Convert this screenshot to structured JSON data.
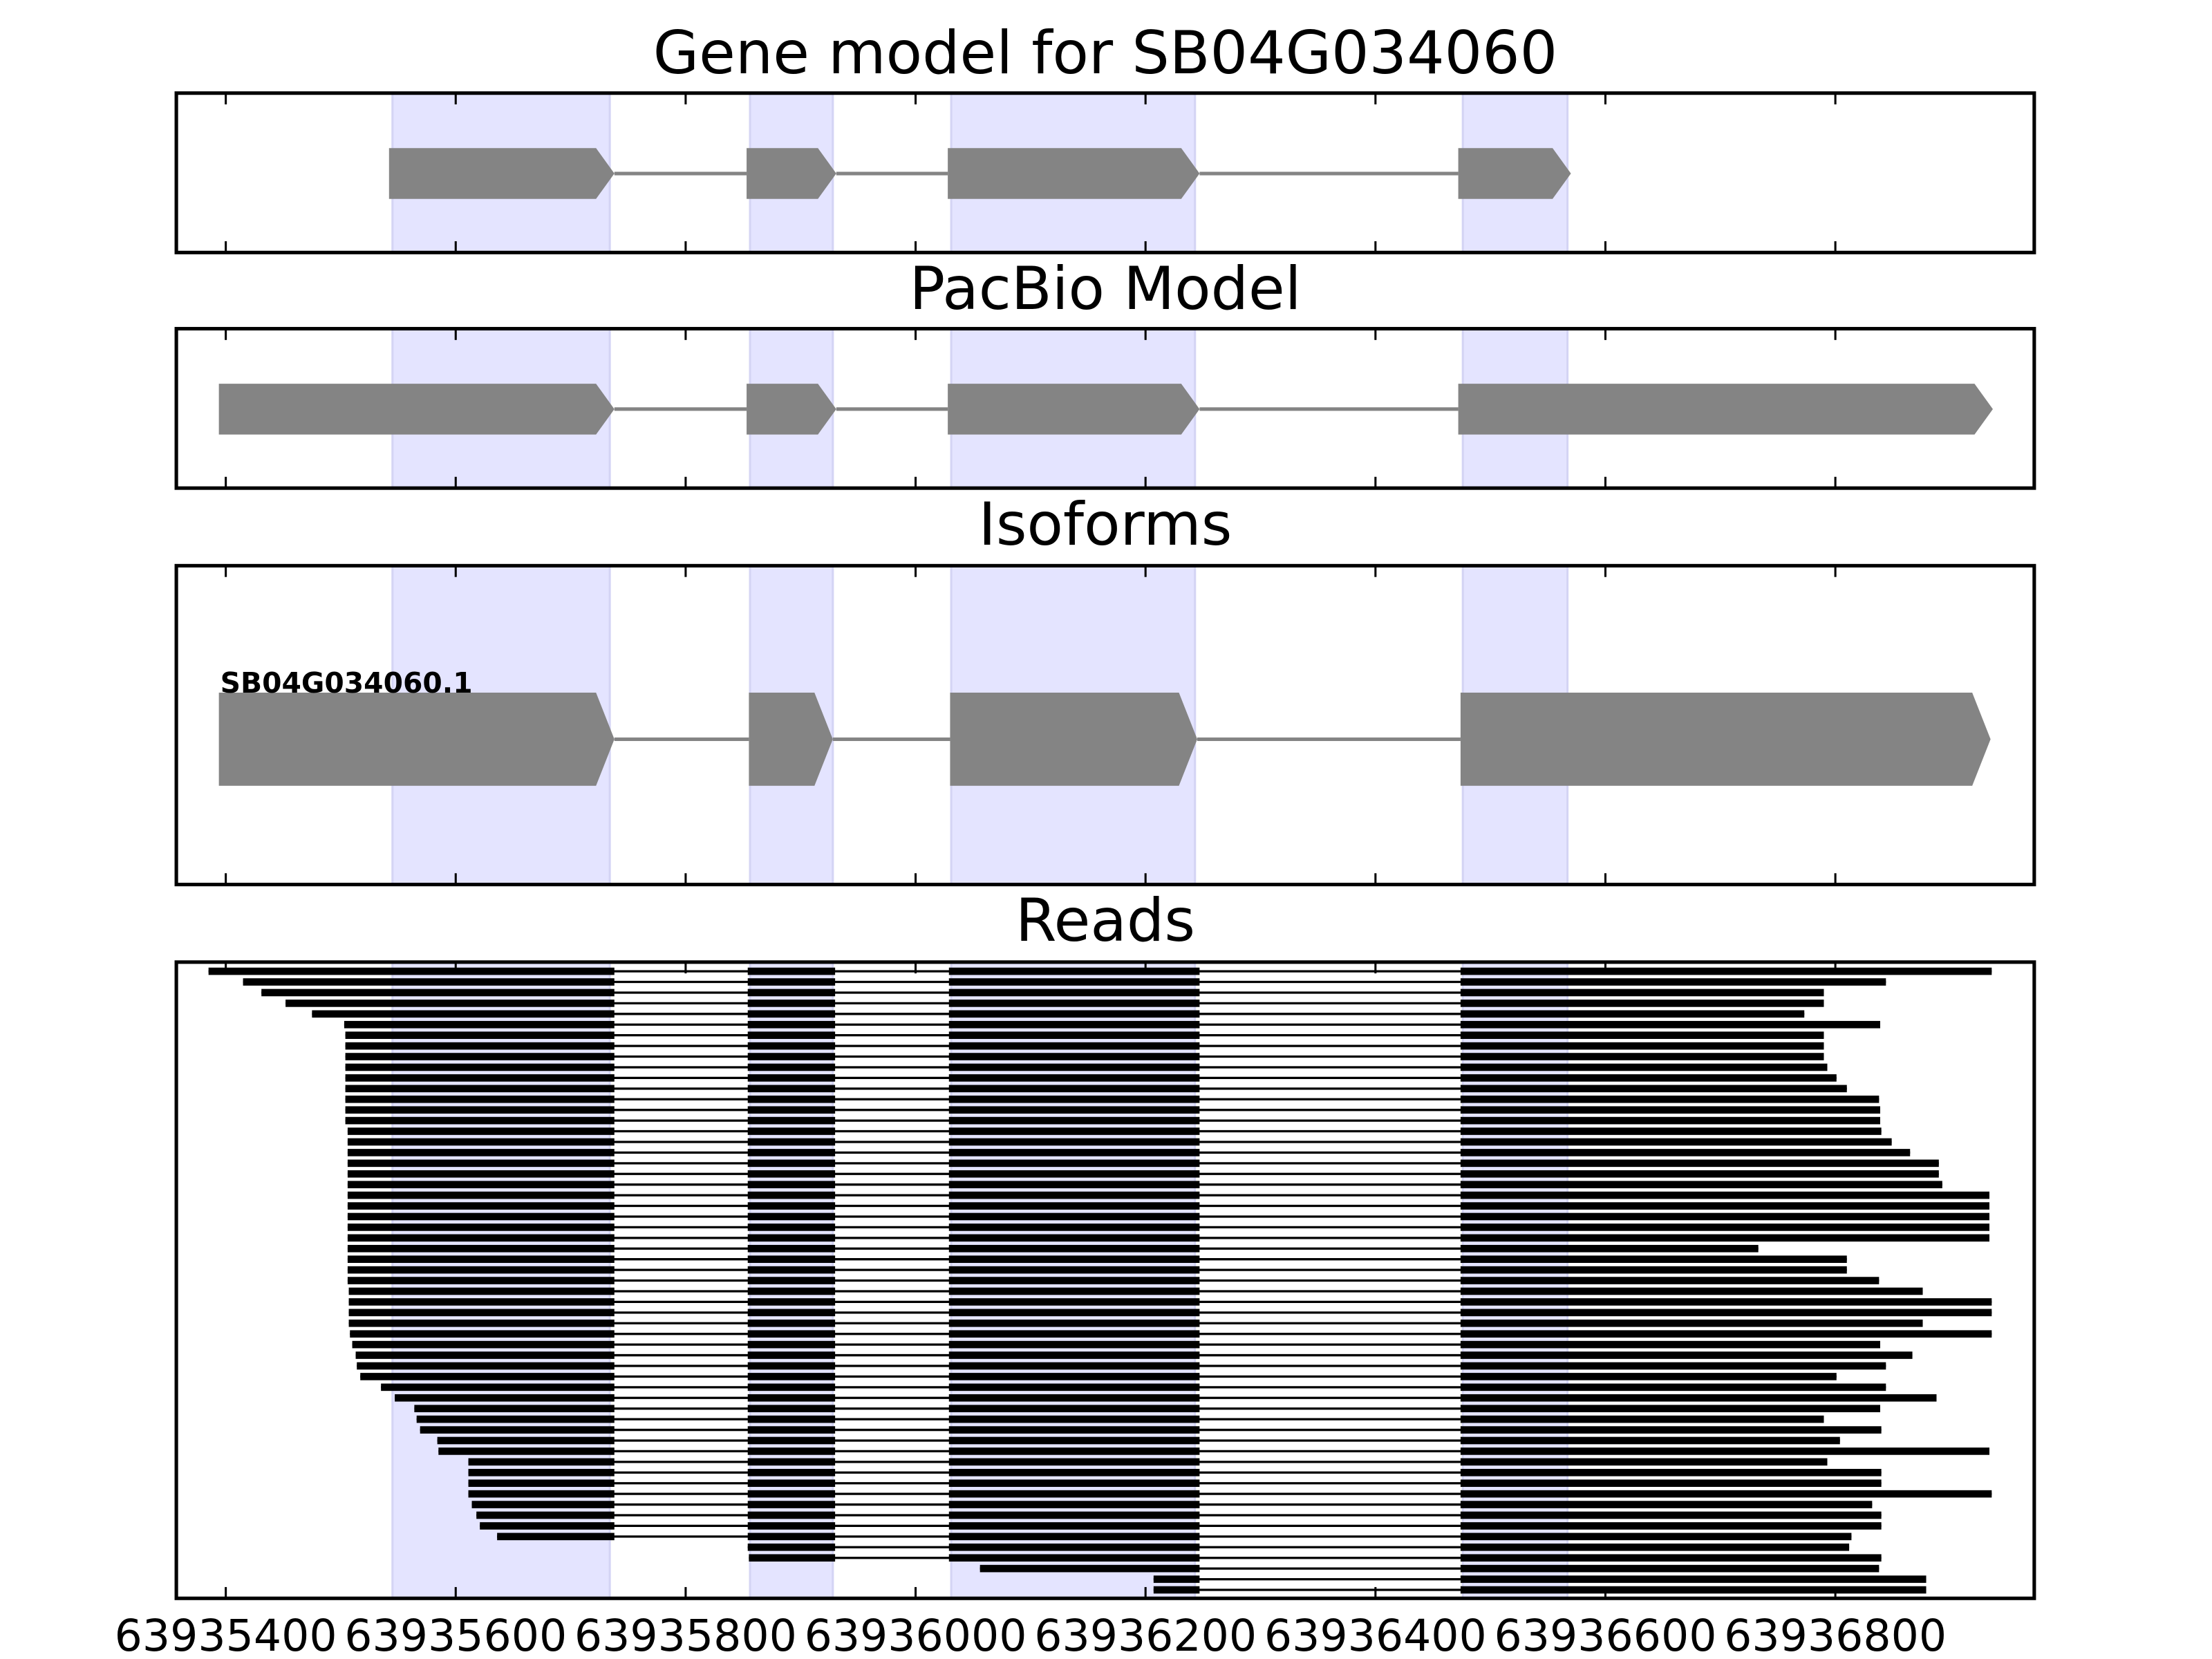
{
  "chart_data": {
    "type": "gene-track",
    "xlim": [
      63935357,
      63936973
    ],
    "xticks": [
      63935400,
      63935600,
      63935800,
      63936000,
      63936200,
      63936400,
      63936600,
      63936800
    ],
    "highlight_exons": [
      [
        63935545,
        63935734
      ],
      [
        63935856,
        63935928
      ],
      [
        63936031,
        63936243
      ],
      [
        63936476,
        63936567
      ]
    ],
    "panels": [
      {
        "title": "Gene model for SB04G034060",
        "features": [
          {
            "exons": [
              [
                63935542,
                63935738
              ],
              [
                63935853,
                63935931
              ],
              [
                63936028,
                63936247
              ],
              [
                63936472,
                63936570
              ]
            ]
          }
        ]
      },
      {
        "title": "PacBio Model",
        "features": [
          {
            "exons": [
              [
                63935394,
                63935738
              ],
              [
                63935853,
                63935931
              ],
              [
                63936028,
                63936247
              ],
              [
                63936472,
                63936937
              ]
            ]
          }
        ]
      },
      {
        "title": "Isoforms",
        "features": [
          {
            "name": "SB04G034060.1",
            "exons": [
              [
                63935394,
                63935738
              ],
              [
                63935855,
                63935928
              ],
              [
                63936030,
                63936245
              ],
              [
                63936474,
                63936935
              ]
            ]
          }
        ]
      },
      {
        "title": "Reads",
        "introns": [
          [
            63935738,
            63935854
          ],
          [
            63935930,
            63936029
          ],
          [
            63936247,
            63936474
          ]
        ],
        "reads": [
          [
            63935385,
            63936936
          ],
          [
            63935415,
            63936844
          ],
          [
            63935431,
            63936790
          ],
          [
            63935452,
            63936790
          ],
          [
            63935475,
            63936773
          ],
          [
            63935503,
            63936839
          ],
          [
            63935504,
            63936790
          ],
          [
            63935504,
            63936790
          ],
          [
            63935504,
            63936790
          ],
          [
            63935504,
            63936793
          ],
          [
            63935504,
            63936801
          ],
          [
            63935504,
            63936810
          ],
          [
            63935504,
            63936838
          ],
          [
            63935504,
            63936839
          ],
          [
            63935504,
            63936839
          ],
          [
            63935506,
            63936840
          ],
          [
            63935506,
            63936849
          ],
          [
            63935506,
            63936865
          ],
          [
            63935506,
            63936890
          ],
          [
            63935506,
            63936890
          ],
          [
            63935506,
            63936893
          ],
          [
            63935506,
            63936934
          ],
          [
            63935506,
            63936934
          ],
          [
            63935506,
            63936934
          ],
          [
            63935506,
            63936934
          ],
          [
            63935506,
            63936934
          ],
          [
            63935506,
            63936733
          ],
          [
            63935506,
            63936810
          ],
          [
            63935506,
            63936810
          ],
          [
            63935506,
            63936838
          ],
          [
            63935507,
            63936876
          ],
          [
            63935507,
            63936936
          ],
          [
            63935507,
            63936936
          ],
          [
            63935507,
            63936876
          ],
          [
            63935508,
            63936936
          ],
          [
            63935510,
            63936839
          ],
          [
            63935513,
            63936867
          ],
          [
            63935514,
            63936844
          ],
          [
            63935517,
            63936801
          ],
          [
            63935535,
            63936844
          ],
          [
            63935547,
            63936888
          ],
          [
            63935564,
            63936839
          ],
          [
            63935566,
            63936790
          ],
          [
            63935569,
            63936840
          ],
          [
            63935584,
            63936804
          ],
          [
            63935585,
            63936934
          ],
          [
            63935611,
            63936793
          ],
          [
            63935611,
            63936840
          ],
          [
            63935611,
            63936840
          ],
          [
            63935611,
            63936936
          ],
          [
            63935614,
            63936832
          ],
          [
            63935618,
            63936840
          ],
          [
            63935621,
            63936840
          ],
          [
            63935636,
            63936814
          ],
          [
            63935854,
            63936812
          ],
          [
            63935855,
            63936840
          ],
          [
            63936056,
            63936838
          ],
          [
            63936207,
            63936879
          ],
          [
            63936207,
            63936879
          ]
        ]
      }
    ]
  }
}
